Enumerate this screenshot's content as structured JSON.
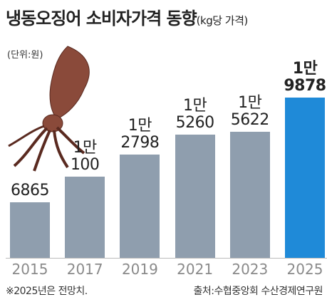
{
  "chart_data": {
    "type": "bar",
    "title": "냉동오징어 소비자가격 동향",
    "subtitle": "(kg당 가격)",
    "unit_note": "(단위:원)",
    "categories": [
      "2015",
      "2017",
      "2019",
      "2021",
      "2023",
      "2025"
    ],
    "values": [
      6865,
      10100,
      12798,
      15260,
      15622,
      19878
    ],
    "value_labels": [
      "6865",
      "1만\n100",
      "1만\n2798",
      "1만\n5260",
      "1만\n5622",
      "1만\n9878"
    ],
    "colors": [
      "#8f9eae",
      "#8f9eae",
      "#8f9eae",
      "#8f9eae",
      "#8f9eae",
      "#1f8ad8"
    ],
    "ylim": [
      0,
      22000
    ],
    "footnote": "※2025년은 전망치.",
    "source": "출처:수협중앙회 수산경제연구원"
  }
}
